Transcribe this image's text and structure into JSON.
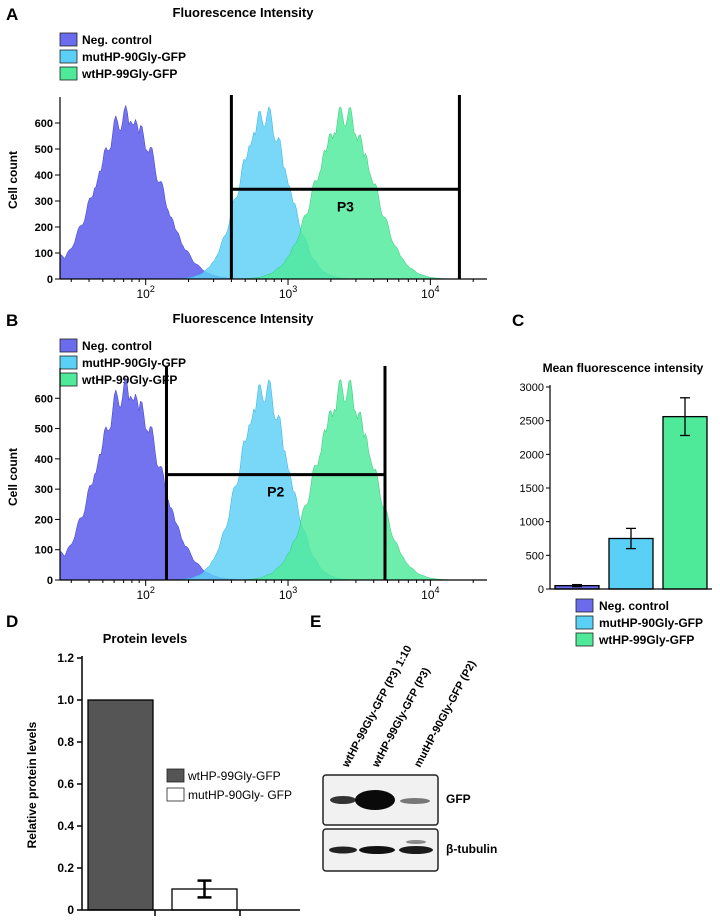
{
  "colors": {
    "neg": "#6B6BEE",
    "mut": "#5BD0F6",
    "wt": "#4EEA9A",
    "dark_bar": "#555555",
    "white_bar": "#ffffff"
  },
  "legend_neg": "Neg. control",
  "legend_mut": "mutHP-90Gly-GFP",
  "legend_wt": "wtHP-99Gly-GFP",
  "chart_data": [
    {
      "panel": "A",
      "type": "area",
      "title": "Fluorescence Intensity",
      "ylabel": "Cell count",
      "xscale": "log",
      "xlim": [
        25,
        25000
      ],
      "ylim": [
        0,
        700
      ],
      "yticks": [
        0,
        100,
        200,
        300,
        400,
        500,
        600
      ],
      "xticks": [
        {
          "v": 100,
          "base": "10",
          "exp": "2"
        },
        {
          "v": 1000,
          "base": "10",
          "exp": "3"
        },
        {
          "v": 10000,
          "base": "10",
          "exp": "4"
        }
      ],
      "series": [
        {
          "name": "Neg. control",
          "peak_x": 75,
          "peak_y": 680,
          "sigma_log10": 0.22
        },
        {
          "name": "mutHP-90Gly-GFP",
          "peak_x": 680,
          "peak_y": 680,
          "sigma_log10": 0.17
        },
        {
          "name": "wtHP-99Gly-GFP",
          "peak_x": 2500,
          "peak_y": 680,
          "sigma_log10": 0.2
        }
      ],
      "gate": {
        "label": "P3",
        "x_from": 400,
        "x_to": 16000,
        "y": 345
      }
    },
    {
      "panel": "B",
      "type": "area",
      "title": "Fluorescence Intensity",
      "ylabel": "Cell count",
      "xscale": "log",
      "xlim": [
        25,
        25000
      ],
      "ylim": [
        0,
        700
      ],
      "yticks": [
        0,
        100,
        200,
        300,
        400,
        500,
        600
      ],
      "xticks": [
        {
          "v": 100,
          "base": "10",
          "exp": "2"
        },
        {
          "v": 1000,
          "base": "10",
          "exp": "3"
        },
        {
          "v": 10000,
          "base": "10",
          "exp": "4"
        }
      ],
      "series": [
        {
          "name": "Neg. control",
          "peak_x": 75,
          "peak_y": 680,
          "sigma_log10": 0.22
        },
        {
          "name": "mutHP-90Gly-GFP",
          "peak_x": 680,
          "peak_y": 680,
          "sigma_log10": 0.17
        },
        {
          "name": "wtHP-99Gly-GFP",
          "peak_x": 2500,
          "peak_y": 680,
          "sigma_log10": 0.2
        }
      ],
      "gate": {
        "label": "P2",
        "x_from": 140,
        "x_to": 4800,
        "y": 348
      }
    },
    {
      "panel": "C",
      "type": "bar",
      "title": "Mean fluorescence intensity",
      "categories": [
        "Neg. control",
        "mutHP-90Gly-GFP",
        "wtHP-99Gly-GFP"
      ],
      "values": [
        50,
        750,
        2560
      ],
      "errors": [
        15,
        150,
        280
      ],
      "ylim": [
        0,
        3000
      ],
      "yticks": [
        0,
        500,
        1000,
        1500,
        2000,
        2500,
        3000
      ]
    },
    {
      "panel": "D",
      "type": "bar",
      "title": "Protein levels",
      "ylabel": "Relative protein levels",
      "categories": [
        "wtHP-99Gly-GFP",
        "mutHP-90Gly- GFP"
      ],
      "values": [
        1.0,
        0.1
      ],
      "errors": [
        0,
        0.04
      ],
      "ylim": [
        0,
        1.2
      ],
      "yticks": [
        "0",
        "0.2",
        "0.4",
        "0.6",
        "0.8",
        "1.0",
        "1.2"
      ]
    }
  ],
  "panel_e": {
    "letter": "E",
    "lanes": [
      "wtHP-99Gly-GFP (P3) 1:10",
      "wtHP-99Gly-GFP (P3)",
      "mutHP-90Gly-GFP (P2)"
    ],
    "blots": [
      "GFP",
      "β-tubulin"
    ]
  }
}
